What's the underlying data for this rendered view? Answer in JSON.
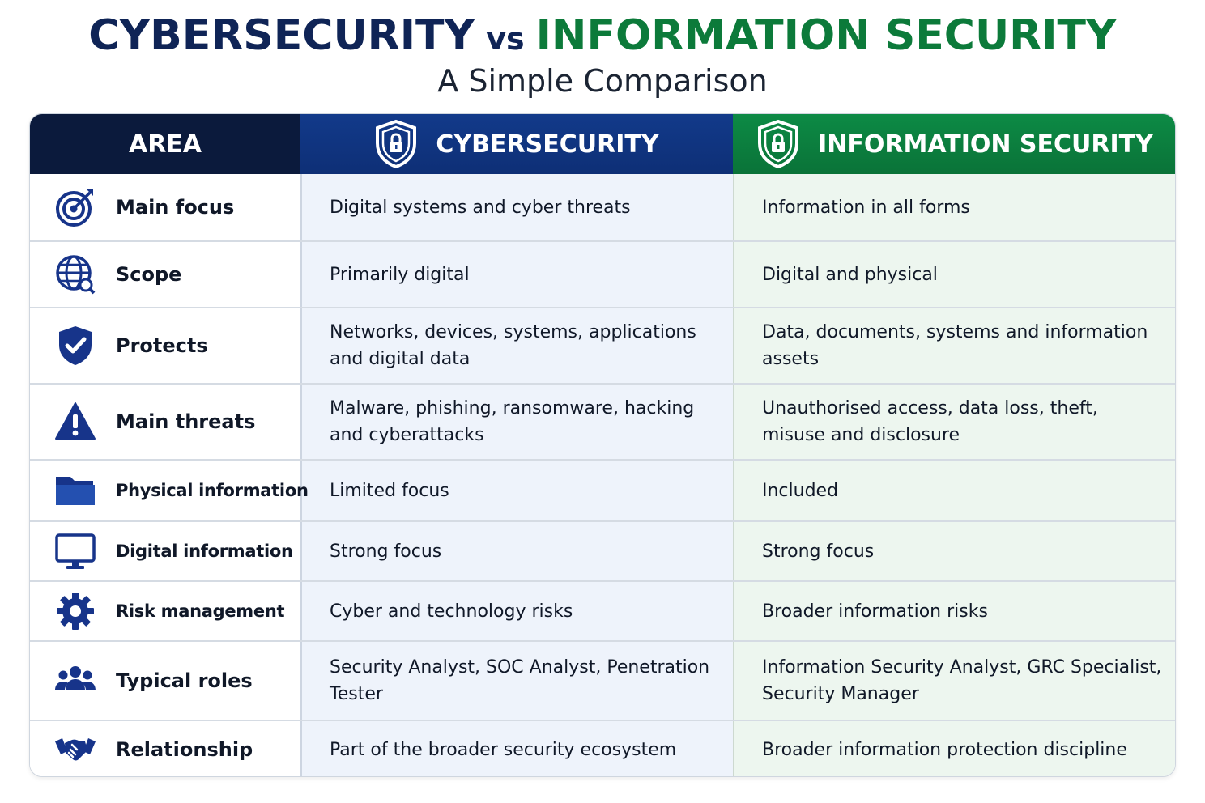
{
  "title": {
    "left": "CYBERSECURITY",
    "vs": "vs",
    "right": "INFORMATION SECURITY",
    "subtitle": "A Simple Comparison"
  },
  "colors": {
    "navy": "#0f2456",
    "blue": "#123a8a",
    "green": "#0c7a3a"
  },
  "headers": {
    "area": "AREA",
    "cyber": "CYBERSECURITY",
    "info": "INFORMATION SECURITY",
    "icon": "shield-lock-icon"
  },
  "rows": [
    {
      "icon": "target-icon",
      "area": "Main focus",
      "cyber": "Digital systems and cyber threats",
      "info": "Information in all forms"
    },
    {
      "icon": "globe-icon",
      "area": "Scope",
      "cyber": "Primarily digital",
      "info": "Digital and physical"
    },
    {
      "icon": "shield-check-icon",
      "area": "Protects",
      "cyber": "Networks, devices, systems, applications and digital data",
      "info": "Data, documents, systems and information assets"
    },
    {
      "icon": "warning-icon",
      "area": "Main threats",
      "cyber": "Malware, phishing, ransomware, hacking and cyberattacks",
      "info": "Unauthorised access, data loss, theft, misuse and disclosure"
    },
    {
      "icon": "folder-icon",
      "area": "Physical information",
      "cyber": "Limited focus",
      "info": "Included"
    },
    {
      "icon": "monitor-icon",
      "area": "Digital information",
      "cyber": "Strong focus",
      "info": "Strong focus"
    },
    {
      "icon": "gear-icon",
      "area": "Risk management",
      "cyber": "Cyber and technology risks",
      "info": "Broader information risks"
    },
    {
      "icon": "people-icon",
      "area": "Typical roles",
      "cyber": "Security Analyst, SOC Analyst, Penetration Tester",
      "info": "Information Security Analyst, GRC Specialist, Security Manager"
    },
    {
      "icon": "handshake-icon",
      "area": "Relationship",
      "cyber": "Part of the broader security ecosystem",
      "info": "Broader information protection discipline"
    }
  ]
}
